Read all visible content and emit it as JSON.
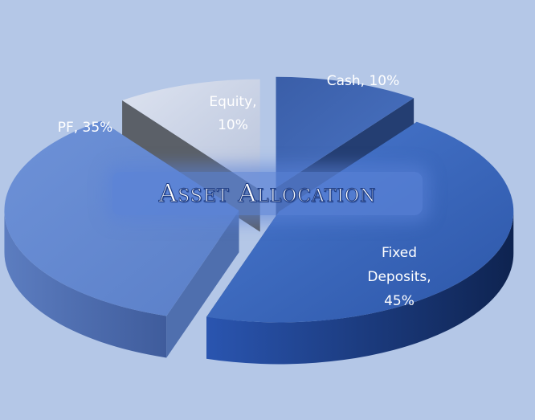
{
  "chart_data": {
    "type": "pie",
    "title": "Asset Allocation",
    "labels": [
      "Cash",
      "Fixed Deposits",
      "PF",
      "Equity"
    ],
    "values": [
      10,
      45,
      35,
      10
    ],
    "data_labels": [
      [
        "Cash, 10%"
      ],
      [
        "Fixed",
        "Deposits,",
        "45%"
      ],
      [
        "PF, 35%"
      ],
      [
        "Equity,",
        "10%"
      ]
    ],
    "colors": [
      "#3f67b3",
      "#3560b8",
      "#6a8fd8",
      "#c8d2e8"
    ],
    "side_colors": [
      "#243e72",
      "#1c3a78",
      "#4f6fae",
      "#5b6068"
    ],
    "exploded": true,
    "style": "3d"
  }
}
